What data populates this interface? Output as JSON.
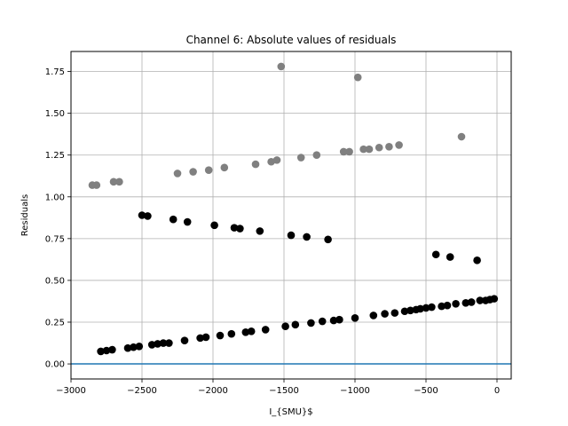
{
  "chart_data": {
    "type": "scatter",
    "title": "Channel 6: Absolute values of residuals",
    "xlabel": "I_{SMU}$",
    "ylabel": "Residuals",
    "xlim": [
      -3000,
      100
    ],
    "ylim": [
      -0.09,
      1.87
    ],
    "xticks": [
      -3000,
      -2500,
      -2000,
      -1500,
      -1000,
      -500,
      0
    ],
    "xtick_labels": [
      "−3000",
      "−2500",
      "−2000",
      "−1500",
      "−1000",
      "−500",
      "0"
    ],
    "yticks": [
      0.0,
      0.25,
      0.5,
      0.75,
      1.0,
      1.25,
      1.5,
      1.75
    ],
    "ytick_labels": [
      "0.00",
      "0.25",
      "0.50",
      "0.75",
      "1.00",
      "1.25",
      "1.50",
      "1.75"
    ],
    "grid": true,
    "hline": {
      "y": 0,
      "color": "#1f77b4"
    },
    "series": [
      {
        "color": "#808080",
        "points": [
          [
            -2850,
            1.07
          ],
          [
            -2820,
            1.07
          ],
          [
            -2700,
            1.09
          ],
          [
            -2660,
            1.09
          ],
          [
            -2250,
            1.14
          ],
          [
            -2140,
            1.15
          ],
          [
            -2030,
            1.16
          ],
          [
            -1920,
            1.175
          ],
          [
            -1700,
            1.195
          ],
          [
            -1590,
            1.21
          ],
          [
            -1550,
            1.22
          ],
          [
            -1520,
            1.78
          ],
          [
            -1380,
            1.235
          ],
          [
            -1270,
            1.25
          ],
          [
            -1080,
            1.27
          ],
          [
            -1040,
            1.27
          ],
          [
            -980,
            1.715
          ],
          [
            -940,
            1.285
          ],
          [
            -900,
            1.285
          ],
          [
            -830,
            1.295
          ],
          [
            -760,
            1.3
          ],
          [
            -690,
            1.31
          ],
          [
            -250,
            1.36
          ]
        ]
      },
      {
        "color": "#000000",
        "points": [
          [
            -2500,
            0.89
          ],
          [
            -2460,
            0.885
          ],
          [
            -2280,
            0.865
          ],
          [
            -2180,
            0.85
          ],
          [
            -1990,
            0.83
          ],
          [
            -1850,
            0.815
          ],
          [
            -1810,
            0.81
          ],
          [
            -1670,
            0.795
          ],
          [
            -1450,
            0.77
          ],
          [
            -1340,
            0.76
          ],
          [
            -1190,
            0.745
          ],
          [
            -430,
            0.655
          ],
          [
            -330,
            0.64
          ],
          [
            -140,
            0.62
          ]
        ]
      },
      {
        "color": "#000000",
        "points": [
          [
            -2790,
            0.075
          ],
          [
            -2750,
            0.08
          ],
          [
            -2710,
            0.085
          ],
          [
            -2600,
            0.095
          ],
          [
            -2560,
            0.1
          ],
          [
            -2520,
            0.105
          ],
          [
            -2430,
            0.115
          ],
          [
            -2390,
            0.12
          ],
          [
            -2350,
            0.125
          ],
          [
            -2310,
            0.125
          ],
          [
            -2200,
            0.14
          ],
          [
            -2090,
            0.155
          ],
          [
            -2050,
            0.16
          ],
          [
            -1950,
            0.17
          ],
          [
            -1870,
            0.18
          ],
          [
            -1770,
            0.19
          ],
          [
            -1730,
            0.195
          ],
          [
            -1630,
            0.205
          ],
          [
            -1490,
            0.225
          ],
          [
            -1420,
            0.235
          ],
          [
            -1310,
            0.245
          ],
          [
            -1230,
            0.255
          ],
          [
            -1150,
            0.26
          ],
          [
            -1110,
            0.265
          ],
          [
            -1000,
            0.275
          ],
          [
            -870,
            0.29
          ],
          [
            -790,
            0.3
          ],
          [
            -720,
            0.305
          ],
          [
            -650,
            0.315
          ],
          [
            -610,
            0.32
          ],
          [
            -570,
            0.325
          ],
          [
            -540,
            0.33
          ],
          [
            -500,
            0.335
          ],
          [
            -460,
            0.34
          ],
          [
            -390,
            0.345
          ],
          [
            -350,
            0.35
          ],
          [
            -290,
            0.36
          ],
          [
            -220,
            0.365
          ],
          [
            -180,
            0.37
          ],
          [
            -120,
            0.38
          ],
          [
            -80,
            0.38
          ],
          [
            -50,
            0.385
          ],
          [
            -20,
            0.39
          ]
        ]
      }
    ]
  }
}
